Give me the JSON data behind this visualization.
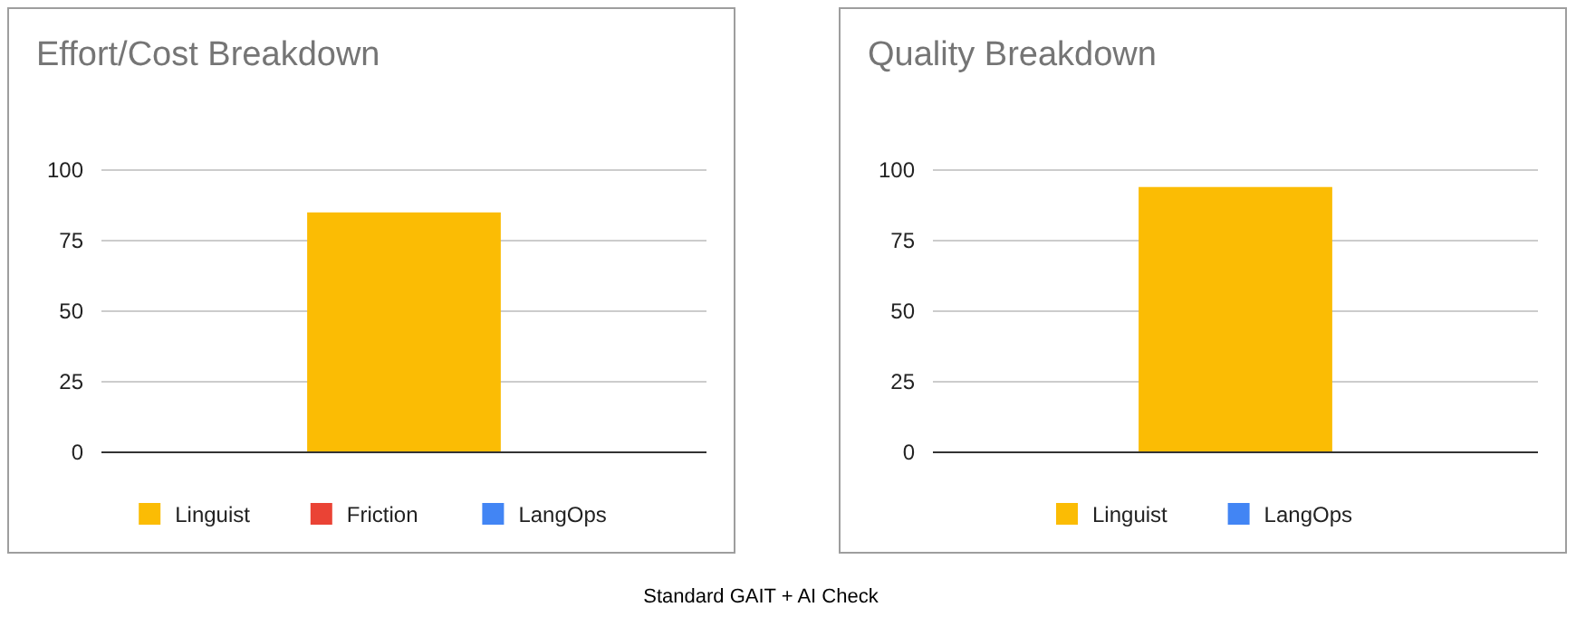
{
  "chart_data": [
    {
      "type": "bar",
      "title": "Effort/Cost Breakdown",
      "categories": [
        null
      ],
      "ylim": [
        0,
        100
      ],
      "yticks": [
        0,
        25,
        50,
        75,
        100
      ],
      "grid": "y",
      "legend": "bottom",
      "series": [
        {
          "name": "Linguist",
          "color": "#fbbc04",
          "values": [
            85
          ]
        },
        {
          "name": "Friction",
          "color": "#ea4335",
          "values": [
            0
          ]
        },
        {
          "name": "LangOps",
          "color": "#4285f4",
          "values": [
            0
          ]
        }
      ],
      "annotations": [
        "Standard GAIT + AI Check"
      ]
    },
    {
      "type": "bar",
      "title": "Quality Breakdown",
      "categories": [
        null
      ],
      "ylim": [
        0,
        100
      ],
      "yticks": [
        0,
        25,
        50,
        75,
        100
      ],
      "grid": "y",
      "legend": "bottom",
      "series": [
        {
          "name": "Linguist",
          "color": "#fbbc04",
          "values": [
            94
          ]
        },
        {
          "name": "LangOps",
          "color": "#4285f4",
          "values": [
            0
          ]
        }
      ]
    }
  ]
}
